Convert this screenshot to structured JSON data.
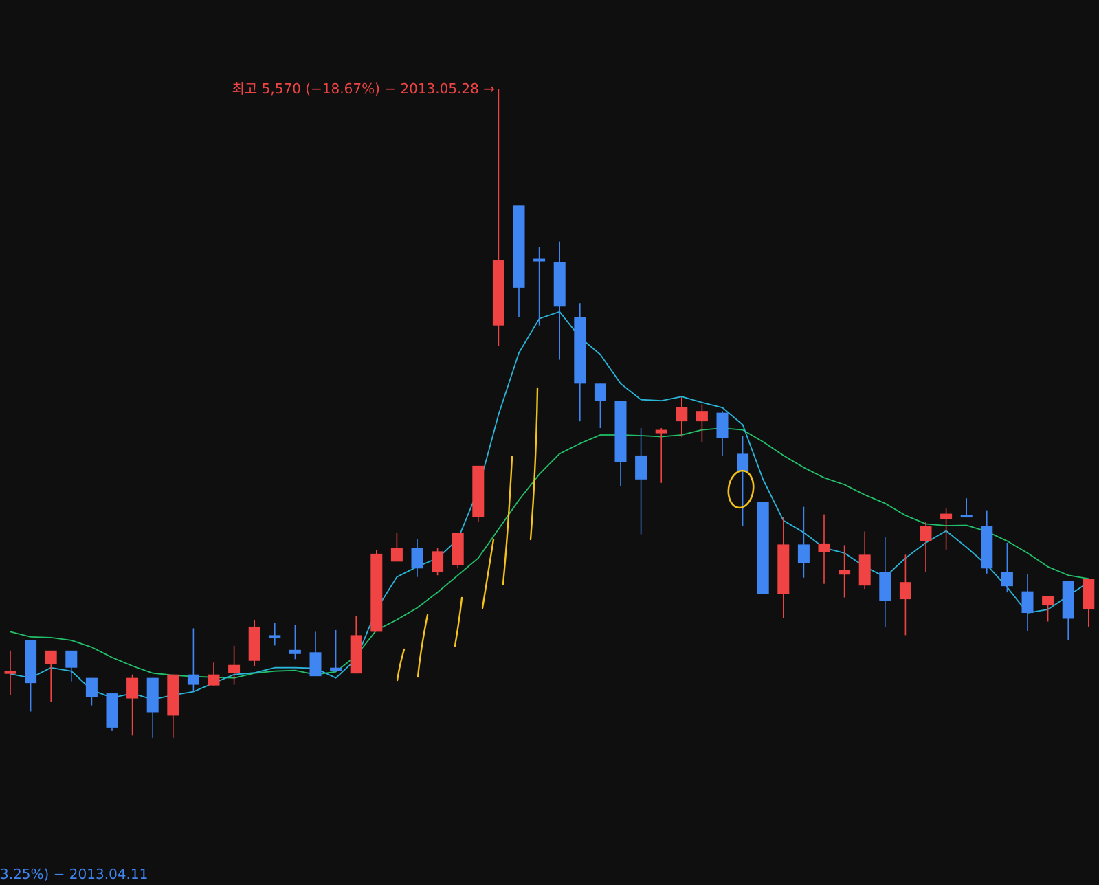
{
  "colors": {
    "background": "#0f0f0f",
    "up": "#f04444",
    "down": "#3f86f2",
    "ma_short": "#2ab5d9",
    "ma_long": "#22c06a",
    "marker": "#f5c21a"
  },
  "annotations": {
    "high_label": "최고 5,570 (−18.67%) − 2013.05.28 →",
    "low_label": "3.25%) − 2013.04.11"
  },
  "chart_data": {
    "type": "candlestick",
    "axes": {
      "y_unit": "price",
      "grid": false,
      "legend": "none"
    },
    "candles": [
      {
        "o": 3870,
        "c": 3870,
        "h": 3930,
        "l": 3800,
        "dir": "up"
      },
      {
        "o": 3960,
        "c": 3835,
        "h": 3960,
        "l": 3752,
        "dir": "down"
      },
      {
        "o": 3890,
        "c": 3930,
        "h": 3930,
        "l": 3780,
        "dir": "up"
      },
      {
        "o": 3930,
        "c": 3880,
        "h": 3930,
        "l": 3840,
        "dir": "down"
      },
      {
        "o": 3850,
        "c": 3795,
        "h": 3850,
        "l": 3770,
        "dir": "down"
      },
      {
        "o": 3805,
        "c": 3705,
        "h": 3805,
        "l": 3695,
        "dir": "down"
      },
      {
        "o": 3790,
        "c": 3850,
        "h": 3860,
        "l": 3682,
        "dir": "up"
      },
      {
        "o": 3850,
        "c": 3750,
        "h": 3850,
        "l": 3675,
        "dir": "down"
      },
      {
        "o": 3740,
        "c": 3860,
        "h": 3860,
        "l": 3675,
        "dir": "up"
      },
      {
        "o": 3860,
        "c": 3830,
        "h": 3995,
        "l": 3810,
        "dir": "down"
      },
      {
        "o": 3828,
        "c": 3860,
        "h": 3895,
        "l": 3826,
        "dir": "up"
      },
      {
        "o": 3865,
        "c": 3888,
        "h": 3944,
        "l": 3830,
        "dir": "up"
      },
      {
        "o": 4000,
        "c": 3900,
        "h": 4020,
        "l": 3885,
        "dir": "up"
      },
      {
        "o": 3975,
        "c": 3970,
        "h": 4010,
        "l": 3945,
        "dir": "down"
      },
      {
        "o": 3932,
        "c": 3920,
        "h": 4005,
        "l": 3905,
        "dir": "down"
      },
      {
        "o": 3925,
        "c": 3855,
        "h": 3985,
        "l": 3855,
        "dir": "down"
      },
      {
        "o": 3880,
        "c": 3870,
        "h": 3990,
        "l": 3868,
        "dir": "down"
      },
      {
        "o": 3863,
        "c": 3975,
        "h": 4030,
        "l": 3863,
        "dir": "up"
      },
      {
        "o": 3985,
        "c": 4213,
        "h": 4223,
        "l": 3985,
        "dir": "up"
      },
      {
        "o": 4190,
        "c": 4230,
        "h": 4275,
        "l": 4190,
        "dir": "up"
      },
      {
        "o": 4230,
        "c": 4170,
        "h": 4255,
        "l": 4145,
        "dir": "down"
      },
      {
        "o": 4160,
        "c": 4220,
        "h": 4230,
        "l": 4150,
        "dir": "up"
      },
      {
        "o": 4180,
        "c": 4275,
        "h": 4275,
        "l": 4170,
        "dir": "up"
      },
      {
        "o": 4320,
        "c": 4470,
        "h": 4470,
        "l": 4305,
        "dir": "up"
      },
      {
        "o": 4880,
        "c": 5070,
        "h": 5570,
        "l": 4820,
        "dir": "up"
      },
      {
        "o": 5230,
        "c": 4990,
        "h": 5230,
        "l": 4905,
        "dir": "down"
      },
      {
        "o": 5075,
        "c": 5068,
        "h": 5110,
        "l": 4880,
        "dir": "down"
      },
      {
        "o": 5065,
        "c": 4935,
        "h": 5125,
        "l": 4780,
        "dir": "down"
      },
      {
        "o": 4905,
        "c": 4710,
        "h": 4945,
        "l": 4600,
        "dir": "down"
      },
      {
        "o": 4710,
        "c": 4660,
        "h": 4710,
        "l": 4580,
        "dir": "down"
      },
      {
        "o": 4660,
        "c": 4480,
        "h": 4660,
        "l": 4410,
        "dir": "down"
      },
      {
        "o": 4500,
        "c": 4430,
        "h": 4580,
        "l": 4270,
        "dir": "down"
      },
      {
        "o": 4565,
        "c": 4575,
        "h": 4580,
        "l": 4420,
        "dir": "up"
      },
      {
        "o": 4600,
        "c": 4642,
        "h": 4670,
        "l": 4555,
        "dir": "up"
      },
      {
        "o": 4600,
        "c": 4630,
        "h": 4650,
        "l": 4540,
        "dir": "up"
      },
      {
        "o": 4625,
        "c": 4550,
        "h": 4630,
        "l": 4500,
        "dir": "down"
      },
      {
        "o": 4505,
        "c": 4455,
        "h": 4557,
        "l": 4295,
        "dir": "down"
      },
      {
        "o": 4365,
        "c": 4095,
        "h": 4365,
        "l": 4095,
        "dir": "down"
      },
      {
        "o": 4095,
        "c": 4240,
        "h": 4320,
        "l": 4025,
        "dir": "up"
      },
      {
        "o": 4240,
        "c": 4185,
        "h": 4350,
        "l": 4143,
        "dir": "down"
      },
      {
        "o": 4218,
        "c": 4243,
        "h": 4328,
        "l": 4125,
        "dir": "up"
      },
      {
        "o": 4152,
        "c": 4166,
        "h": 4238,
        "l": 4085,
        "dir": "up"
      },
      {
        "o": 4120,
        "c": 4210,
        "h": 4278,
        "l": 4110,
        "dir": "up"
      },
      {
        "o": 4160,
        "c": 4075,
        "h": 4263,
        "l": 4000,
        "dir": "down"
      },
      {
        "o": 4080,
        "c": 4130,
        "h": 4210,
        "l": 3975,
        "dir": "up"
      },
      {
        "o": 4250,
        "c": 4293,
        "h": 4305,
        "l": 4160,
        "dir": "up"
      },
      {
        "o": 4315,
        "c": 4330,
        "h": 4345,
        "l": 4225,
        "dir": "up"
      },
      {
        "o": 4327,
        "c": 4322,
        "h": 4375,
        "l": 4325,
        "dir": "down"
      },
      {
        "o": 4293,
        "c": 4170,
        "h": 4340,
        "l": 4155,
        "dir": "down"
      },
      {
        "o": 4160,
        "c": 4118,
        "h": 4245,
        "l": 4100,
        "dir": "down"
      },
      {
        "o": 4103,
        "c": 4040,
        "h": 4153,
        "l": 3988,
        "dir": "down"
      },
      {
        "o": 4062,
        "c": 4090,
        "h": 4090,
        "l": 4015,
        "dir": "up"
      },
      {
        "o": 4133,
        "c": 4023,
        "h": 4133,
        "l": 3960,
        "dir": "down"
      },
      {
        "o": 4050,
        "c": 4140,
        "h": 4140,
        "l": 4000,
        "dir": "up"
      }
    ],
    "ma_short": [
      3862,
      3850,
      3880,
      3870,
      3815,
      3792,
      3805,
      3787,
      3800,
      3810,
      3835,
      3860,
      3865,
      3880,
      3880,
      3878,
      3850,
      3905,
      4050,
      4145,
      4175,
      4200,
      4255,
      4400,
      4620,
      4800,
      4900,
      4920,
      4845,
      4795,
      4710,
      4663,
      4660,
      4672,
      4655,
      4640,
      4590,
      4430,
      4310,
      4275,
      4230,
      4215,
      4175,
      4145,
      4200,
      4245,
      4280,
      4232,
      4180,
      4115,
      4040,
      4050,
      4090,
      4130
    ],
    "ma_long": [
      3985,
      3970,
      3968,
      3960,
      3940,
      3910,
      3885,
      3864,
      3858,
      3854,
      3852,
      3850,
      3864,
      3870,
      3872,
      3860,
      3868,
      3915,
      3990,
      4020,
      4055,
      4100,
      4150,
      4200,
      4285,
      4370,
      4445,
      4505,
      4535,
      4560,
      4560,
      4558,
      4555,
      4560,
      4575,
      4580,
      4575,
      4540,
      4500,
      4465,
      4435,
      4415,
      4385,
      4360,
      4325,
      4300,
      4295,
      4296,
      4278,
      4250,
      4215,
      4175,
      4150,
      4140
    ]
  }
}
